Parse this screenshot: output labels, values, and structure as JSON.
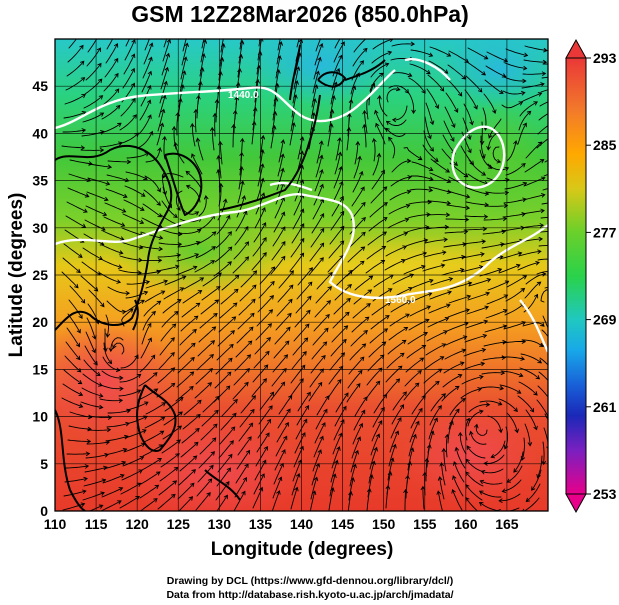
{
  "title": "GSM 12Z28Mar2026 (850.0hPa)",
  "x_axis": {
    "label": "Longitude (degrees)",
    "range": [
      110,
      170
    ],
    "ticks": [
      "110",
      "115",
      "120",
      "125",
      "130",
      "135",
      "140",
      "145",
      "150",
      "155",
      "160",
      "165"
    ]
  },
  "y_axis": {
    "label": "Latitude  (degrees)",
    "range": [
      0,
      50
    ],
    "ticks": [
      "0",
      "5",
      "10",
      "15",
      "20",
      "25",
      "30",
      "35",
      "40",
      "45"
    ]
  },
  "colorbar": {
    "range": [
      253,
      293
    ],
    "labels": [
      "293",
      "285",
      "277",
      "269",
      "261",
      "253"
    ],
    "colors": [
      "#e8008a",
      "#1428c8",
      "#19c8e6",
      "#2ccd2a",
      "#ffa000",
      "#ea3a3a"
    ]
  },
  "contour_labels": [
    "1440.0",
    "1560.0"
  ],
  "credits": {
    "line1": "Drawing by DCL (https://www.gfd-dennou.org/library/dcl/)",
    "line2": "Data from http://database.rish.kyoto-u.ac.jp/arch/jmadata/"
  },
  "map_features": {
    "field": "temperature (K)",
    "overlays": [
      "streamlines",
      "geopotential height contours",
      "coastlines"
    ]
  }
}
